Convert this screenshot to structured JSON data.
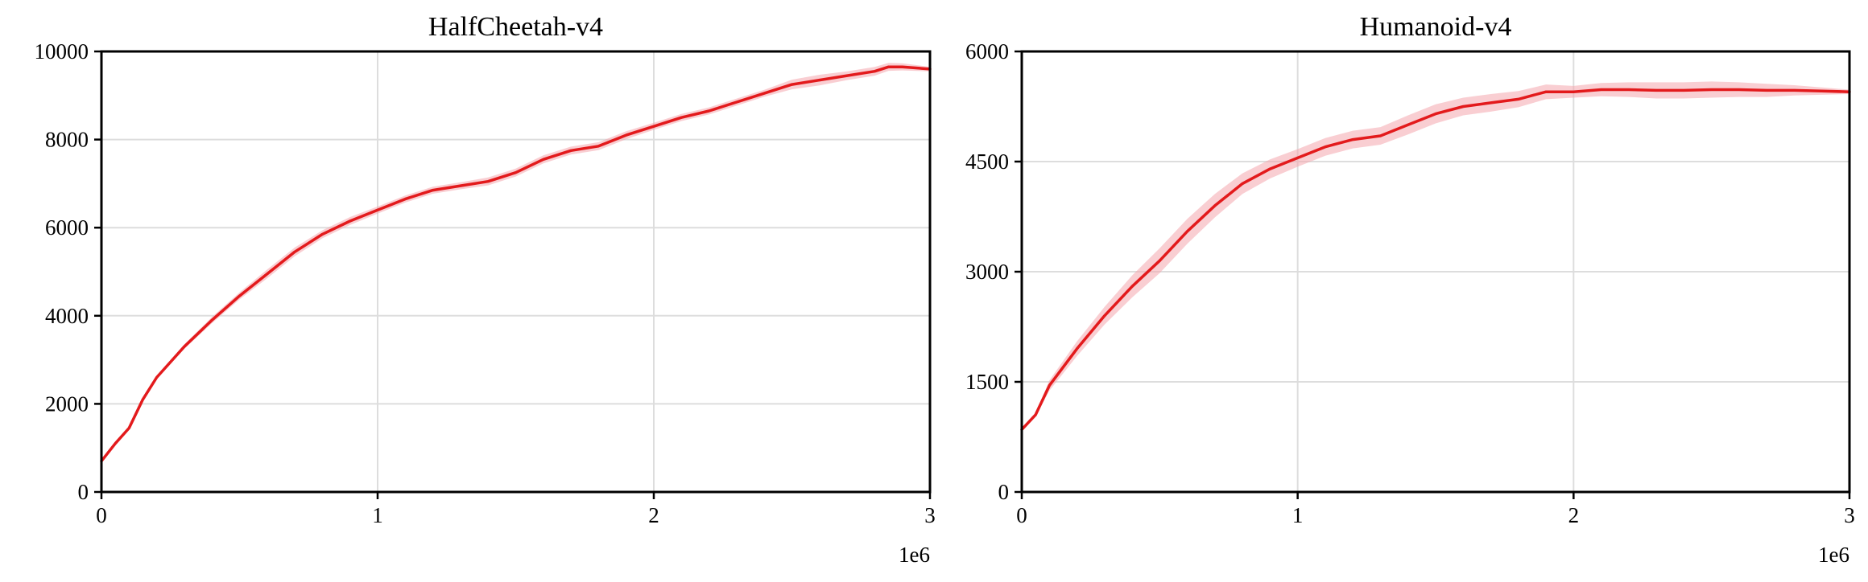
{
  "colors": {
    "line": "#e31a1c",
    "band": "#f4a6ad",
    "grid": "#dddddd",
    "axes": "#000000"
  },
  "chart_data": [
    {
      "type": "line",
      "title": "HalfCheetah-v4",
      "xlabel": "",
      "ylabel": "",
      "x_offset_label": "1e6",
      "xlim": [
        0,
        3
      ],
      "ylim": [
        0,
        10000
      ],
      "xticks": [
        0,
        1,
        2,
        3
      ],
      "yticks": [
        0,
        2000,
        4000,
        6000,
        8000,
        10000
      ],
      "grid": true,
      "legend": "none",
      "series": [
        {
          "x": [
            0,
            0.05,
            0.1,
            0.15,
            0.2,
            0.3,
            0.4,
            0.5,
            0.6,
            0.7,
            0.8,
            0.9,
            1.0,
            1.1,
            1.2,
            1.3,
            1.4,
            1.5,
            1.6,
            1.7,
            1.8,
            1.9,
            2.0,
            2.1,
            2.2,
            2.3,
            2.4,
            2.5,
            2.6,
            2.7,
            2.8,
            2.85,
            2.9,
            3.0
          ],
          "y": [
            700,
            1100,
            1450,
            2100,
            2600,
            3300,
            3900,
            4450,
            4950,
            5450,
            5850,
            6150,
            6400,
            6650,
            6850,
            6950,
            7050,
            7250,
            7550,
            7750,
            7850,
            8100,
            8300,
            8500,
            8650,
            8850,
            9050,
            9250,
            9350,
            9450,
            9550,
            9650,
            9650,
            9600
          ],
          "lower": [
            700,
            1100,
            1430,
            2070,
            2560,
            3250,
            3830,
            4370,
            4850,
            5350,
            5760,
            6060,
            6320,
            6570,
            6770,
            6870,
            6960,
            7160,
            7460,
            7660,
            7760,
            8010,
            8220,
            8420,
            8570,
            8770,
            8970,
            9140,
            9230,
            9350,
            9450,
            9560,
            9570,
            9550
          ],
          "upper": [
            700,
            1100,
            1470,
            2130,
            2640,
            3350,
            3970,
            4530,
            5050,
            5550,
            5940,
            6240,
            6480,
            6730,
            6930,
            7030,
            7140,
            7340,
            7640,
            7840,
            7940,
            8190,
            8380,
            8580,
            8730,
            8930,
            9130,
            9360,
            9470,
            9550,
            9650,
            9740,
            9730,
            9650
          ]
        }
      ]
    },
    {
      "type": "line",
      "title": "Humanoid-v4",
      "xlabel": "",
      "ylabel": "",
      "x_offset_label": "1e6",
      "xlim": [
        0,
        3
      ],
      "ylim": [
        0,
        6000
      ],
      "xticks": [
        0,
        1,
        2,
        3
      ],
      "yticks": [
        0,
        1500,
        3000,
        4500,
        6000
      ],
      "grid": true,
      "legend": "none",
      "series": [
        {
          "x": [
            0,
            0.05,
            0.1,
            0.2,
            0.3,
            0.4,
            0.5,
            0.6,
            0.7,
            0.8,
            0.9,
            1.0,
            1.1,
            1.2,
            1.3,
            1.4,
            1.5,
            1.6,
            1.7,
            1.8,
            1.9,
            2.0,
            2.1,
            2.2,
            2.3,
            2.4,
            2.5,
            2.6,
            2.7,
            2.8,
            2.9,
            3.0
          ],
          "y": [
            850,
            1050,
            1450,
            1950,
            2400,
            2800,
            3150,
            3550,
            3900,
            4200,
            4400,
            4550,
            4700,
            4800,
            4850,
            5000,
            5150,
            5250,
            5300,
            5350,
            5450,
            5450,
            5480,
            5480,
            5470,
            5470,
            5480,
            5480,
            5470,
            5470,
            5460,
            5450
          ],
          "lower": [
            850,
            1030,
            1380,
            1850,
            2280,
            2650,
            2980,
            3380,
            3740,
            4060,
            4270,
            4430,
            4580,
            4680,
            4730,
            4870,
            5020,
            5130,
            5180,
            5240,
            5350,
            5370,
            5390,
            5380,
            5360,
            5360,
            5370,
            5380,
            5380,
            5400,
            5410,
            5420
          ],
          "upper": [
            850,
            1070,
            1520,
            2050,
            2520,
            2950,
            3320,
            3720,
            4060,
            4340,
            4530,
            4670,
            4820,
            4920,
            4970,
            5130,
            5280,
            5370,
            5420,
            5460,
            5550,
            5530,
            5570,
            5580,
            5580,
            5580,
            5590,
            5580,
            5560,
            5540,
            5510,
            5480
          ]
        }
      ]
    }
  ]
}
